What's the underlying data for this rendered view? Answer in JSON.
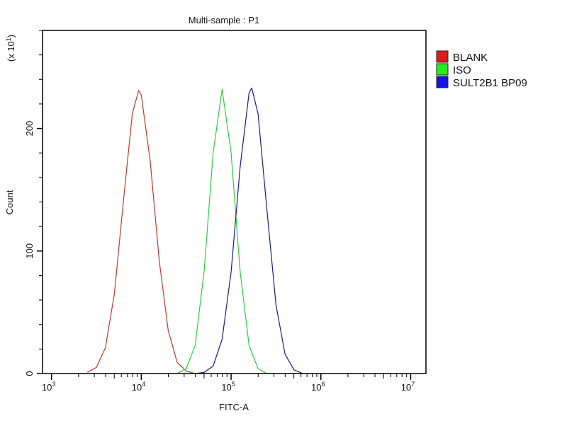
{
  "chart_data": {
    "type": "line",
    "title": "Multi-sample : P1",
    "xlabel": "FITC-A",
    "ylabel": "Count",
    "ylabel_multiplier": {
      "prefix": "(x 10",
      "exp": "1",
      "suffix": ")"
    },
    "xscale": "log",
    "xlim_log10": [
      2.9,
      7.17
    ],
    "ylim": [
      0,
      280
    ],
    "x_ticks": [
      {
        "base": "10",
        "exp": "3",
        "log10": 3
      },
      {
        "base": "10",
        "exp": "4",
        "log10": 4
      },
      {
        "base": "10",
        "exp": "5",
        "log10": 5
      },
      {
        "base": "10",
        "exp": "6",
        "log10": 6
      },
      {
        "base": "10",
        "exp": "7",
        "log10": 7
      }
    ],
    "y_ticks": [
      {
        "label": "0",
        "value": 0
      },
      {
        "label": "100",
        "value": 100
      },
      {
        "label": "200",
        "value": 200
      }
    ],
    "y_minor_step": 20,
    "grid": false,
    "legend_position": "right",
    "series": [
      {
        "name": "BLANK",
        "color": "#e0191c",
        "line_color": "#c0392b",
        "log10_x": [
          3.4,
          3.5,
          3.6,
          3.7,
          3.8,
          3.9,
          3.97,
          4.0,
          4.1,
          4.2,
          4.3,
          4.4,
          4.5,
          4.6
        ],
        "counts": [
          1,
          5,
          21,
          65,
          140,
          212,
          231,
          227,
          173,
          92,
          35,
          9,
          2,
          0
        ]
      },
      {
        "name": "ISO",
        "color": "#22ee22",
        "line_color": "#2ecc40",
        "log10_x": [
          4.4,
          4.5,
          4.6,
          4.7,
          4.8,
          4.9,
          5.0,
          5.1,
          5.2,
          5.3,
          5.4
        ],
        "counts": [
          0,
          4,
          23,
          84,
          180,
          232,
          180,
          84,
          23,
          4,
          0
        ]
      },
      {
        "name": "SULT2B1 BP09",
        "color": "#1414e0",
        "line_color": "#1a1a8c",
        "log10_x": [
          4.6,
          4.7,
          4.8,
          4.9,
          5.0,
          5.1,
          5.2,
          5.23,
          5.3,
          5.4,
          5.5,
          5.6,
          5.7,
          5.8
        ],
        "counts": [
          0,
          1,
          6,
          28,
          83,
          168,
          229,
          233,
          212,
          133,
          56,
          16,
          3,
          0
        ]
      }
    ]
  }
}
